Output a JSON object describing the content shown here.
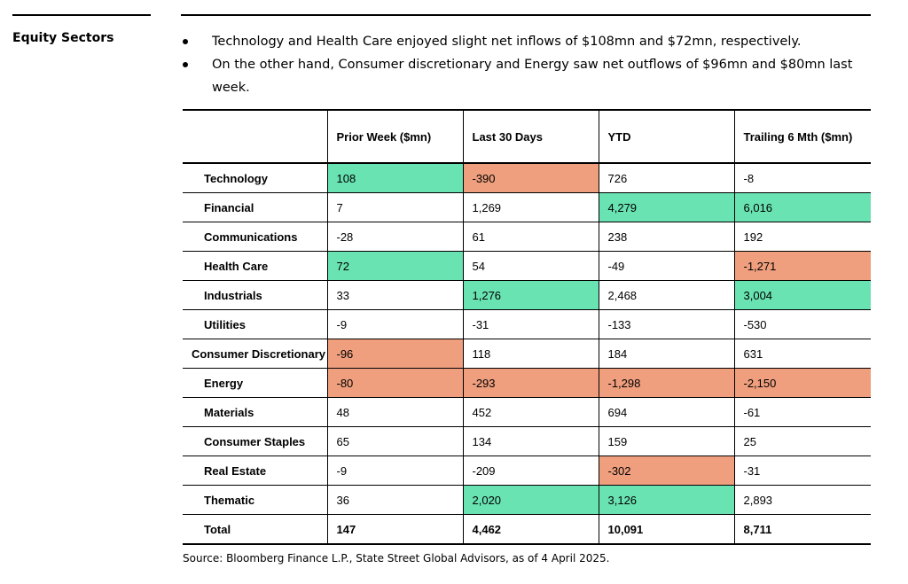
{
  "section_label": "Equity Sectors",
  "bullets": [
    "Technology and Health Care enjoyed slight net inflows of $108mn and $72mn, respectively.",
    "On the other hand, Consumer discretionary and Energy saw net outflows of $96mn and $80mn last week."
  ],
  "table": {
    "headers": [
      "",
      "Prior Week ($mn)",
      "Last 30 Days",
      "YTD",
      "Trailing 6 Mth ($mn)"
    ],
    "highlight_colors": {
      "pos": "#69e3b2",
      "neg": "#ef9f7e"
    },
    "rows": [
      {
        "label": "Technology",
        "values": [
          "108",
          "-390",
          "726",
          "-8"
        ],
        "hl": [
          "pos",
          "neg",
          "",
          ""
        ]
      },
      {
        "label": "Financial",
        "values": [
          "7",
          "1,269",
          "4,279",
          "6,016"
        ],
        "hl": [
          "",
          "",
          "pos",
          "pos"
        ]
      },
      {
        "label": "Communications",
        "values": [
          "-28",
          "61",
          "238",
          "192"
        ],
        "hl": [
          "",
          "",
          "",
          ""
        ]
      },
      {
        "label": "Health Care",
        "values": [
          "72",
          "54",
          "-49",
          "-1,271"
        ],
        "hl": [
          "pos",
          "",
          "",
          "neg"
        ]
      },
      {
        "label": "Industrials",
        "values": [
          "33",
          "1,276",
          "2,468",
          "3,004"
        ],
        "hl": [
          "",
          "pos",
          "",
          "pos"
        ]
      },
      {
        "label": "Utilities",
        "values": [
          "-9",
          "-31",
          "-133",
          "-530"
        ],
        "hl": [
          "",
          "",
          "",
          ""
        ]
      },
      {
        "label": "Consumer Discretionary",
        "values": [
          "-96",
          "118",
          "184",
          "631"
        ],
        "hl": [
          "neg",
          "",
          "",
          ""
        ]
      },
      {
        "label": "Energy",
        "values": [
          "-80",
          "-293",
          "-1,298",
          "-2,150"
        ],
        "hl": [
          "neg",
          "neg",
          "neg",
          "neg"
        ]
      },
      {
        "label": "Materials",
        "values": [
          "48",
          "452",
          "694",
          "-61"
        ],
        "hl": [
          "",
          "",
          "",
          ""
        ]
      },
      {
        "label": "Consumer Staples",
        "values": [
          "65",
          "134",
          "159",
          "25"
        ],
        "hl": [
          "",
          "",
          "",
          ""
        ]
      },
      {
        "label": "Real Estate",
        "values": [
          "-9",
          "-209",
          "-302",
          "-31"
        ],
        "hl": [
          "",
          "",
          "neg",
          ""
        ]
      },
      {
        "label": "Thematic",
        "values": [
          "36",
          "2,020",
          "3,126",
          "2,893"
        ],
        "hl": [
          "",
          "pos",
          "pos",
          ""
        ]
      },
      {
        "label": "Total",
        "values": [
          "147",
          "4,462",
          "10,091",
          "8,711"
        ],
        "hl": [
          "",
          "",
          "",
          ""
        ]
      }
    ]
  },
  "source": "Source: Bloomberg Finance L.P., State Street Global Advisors, as of 4 April 2025."
}
